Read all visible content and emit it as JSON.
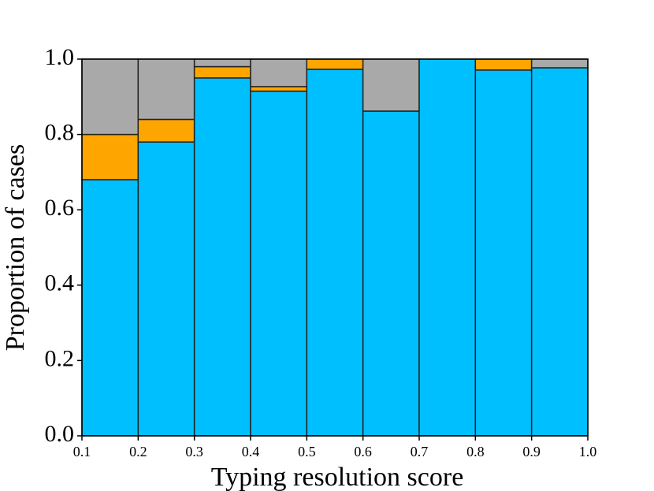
{
  "chart_data": {
    "type": "histogram",
    "xlabel": "Typing resolution score",
    "ylabel": "Proportion of cases",
    "bins": [
      0.1,
      0.2,
      0.3,
      0.4,
      0.5,
      0.6,
      0.7,
      0.8,
      0.9,
      1.0
    ],
    "series": [
      {
        "color": "#00bfff",
        "values": [
          0.68,
          0.78,
          0.95,
          0.915,
          0.973,
          0.862,
          1.0,
          0.971,
          0.977
        ]
      },
      {
        "color": "#ffa500",
        "values": [
          0.12,
          0.06,
          0.03,
          0.012,
          0.027,
          0,
          0,
          0.029,
          0
        ]
      },
      {
        "color": "#a9a9a9",
        "values": [
          0.2,
          0.16,
          0.02,
          0.073,
          0,
          0.138,
          0,
          0,
          0.023
        ]
      }
    ],
    "xlim": [
      0.1,
      1.0
    ],
    "ylim": [
      0,
      1.0
    ],
    "xticks": [
      0.1,
      0.2,
      0.3,
      0.4,
      0.5,
      0.6,
      0.7,
      0.8,
      0.9,
      {
        "value": 1,
        "label": "1.0"
      }
    ],
    "yticks": [
      {
        "value": 0,
        "label": "0.0"
      },
      0.2,
      0.4,
      0.6,
      0.8,
      {
        "value": 1,
        "label": "1.0"
      }
    ]
  }
}
